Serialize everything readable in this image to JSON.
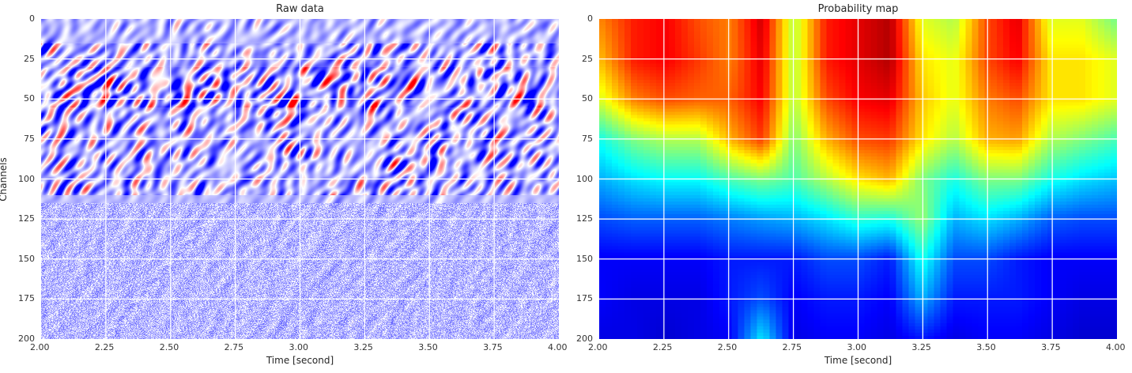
{
  "chart_data": [
    {
      "type": "heatmap",
      "title": "Raw data",
      "xlabel": "Time [second]",
      "ylabel": "Channels",
      "xlim": [
        2.0,
        4.0
      ],
      "ylim": [
        200,
        0
      ],
      "xticks": [
        "2.00",
        "2.25",
        "2.50",
        "2.75",
        "3.00",
        "3.25",
        "3.50",
        "3.75",
        "4.00"
      ],
      "yticks": [
        "0",
        "25",
        "50",
        "75",
        "100",
        "125",
        "150",
        "175",
        "200"
      ],
      "colormap": "bwr",
      "grid": true,
      "strong_signal_channels": [
        15,
        110
      ],
      "weak_noise_channels": [
        120,
        200
      ]
    },
    {
      "type": "heatmap",
      "title": "Probability map",
      "xlabel": "Time [second]",
      "ylabel": "",
      "xlim": [
        2.0,
        4.0
      ],
      "ylim": [
        200,
        0
      ],
      "xticks": [
        "2.00",
        "2.25",
        "2.50",
        "2.75",
        "3.00",
        "3.25",
        "3.50",
        "3.75",
        "4.00"
      ],
      "yticks": [
        "0",
        "25",
        "50",
        "75",
        "100",
        "125",
        "150",
        "175",
        "200"
      ],
      "colormap": "jet",
      "grid": true,
      "grid_times": [
        2.0,
        2.125,
        2.25,
        2.375,
        2.5,
        2.625,
        2.75,
        2.875,
        3.0,
        3.125,
        3.25,
        3.375,
        3.5,
        3.625,
        3.75,
        3.875,
        4.0
      ],
      "grid_channels": [
        0,
        25,
        50,
        75,
        100,
        125,
        150,
        175,
        200
      ],
      "values": [
        [
          0.75,
          0.85,
          0.88,
          0.8,
          0.75,
          0.92,
          0.55,
          0.85,
          0.9,
          0.95,
          0.6,
          0.55,
          0.8,
          0.9,
          0.6,
          0.6,
          0.5
        ],
        [
          0.7,
          0.85,
          0.88,
          0.82,
          0.75,
          0.9,
          0.55,
          0.85,
          0.9,
          0.95,
          0.65,
          0.6,
          0.8,
          0.88,
          0.65,
          0.65,
          0.6
        ],
        [
          0.6,
          0.75,
          0.8,
          0.78,
          0.78,
          0.88,
          0.55,
          0.8,
          0.88,
          0.9,
          0.68,
          0.6,
          0.75,
          0.8,
          0.65,
          0.65,
          0.6
        ],
        [
          0.4,
          0.5,
          0.55,
          0.55,
          0.7,
          0.82,
          0.5,
          0.7,
          0.8,
          0.82,
          0.65,
          0.55,
          0.7,
          0.72,
          0.55,
          0.5,
          0.45
        ],
        [
          0.3,
          0.35,
          0.38,
          0.38,
          0.45,
          0.5,
          0.45,
          0.55,
          0.65,
          0.7,
          0.5,
          0.4,
          0.5,
          0.5,
          0.4,
          0.35,
          0.32
        ],
        [
          0.2,
          0.22,
          0.22,
          0.22,
          0.25,
          0.28,
          0.3,
          0.35,
          0.42,
          0.4,
          0.52,
          0.3,
          0.35,
          0.3,
          0.22,
          0.2,
          0.2
        ],
        [
          0.12,
          0.12,
          0.12,
          0.12,
          0.15,
          0.15,
          0.15,
          0.2,
          0.2,
          0.15,
          0.4,
          0.2,
          0.2,
          0.15,
          0.12,
          0.12,
          0.12
        ],
        [
          0.12,
          0.1,
          0.1,
          0.1,
          0.15,
          0.2,
          0.12,
          0.15,
          0.15,
          0.12,
          0.3,
          0.15,
          0.15,
          0.15,
          0.12,
          0.1,
          0.1
        ],
        [
          0.1,
          0.1,
          0.08,
          0.1,
          0.12,
          0.35,
          0.1,
          0.12,
          0.12,
          0.1,
          0.15,
          0.1,
          0.12,
          0.12,
          0.1,
          0.08,
          0.08
        ]
      ]
    }
  ]
}
